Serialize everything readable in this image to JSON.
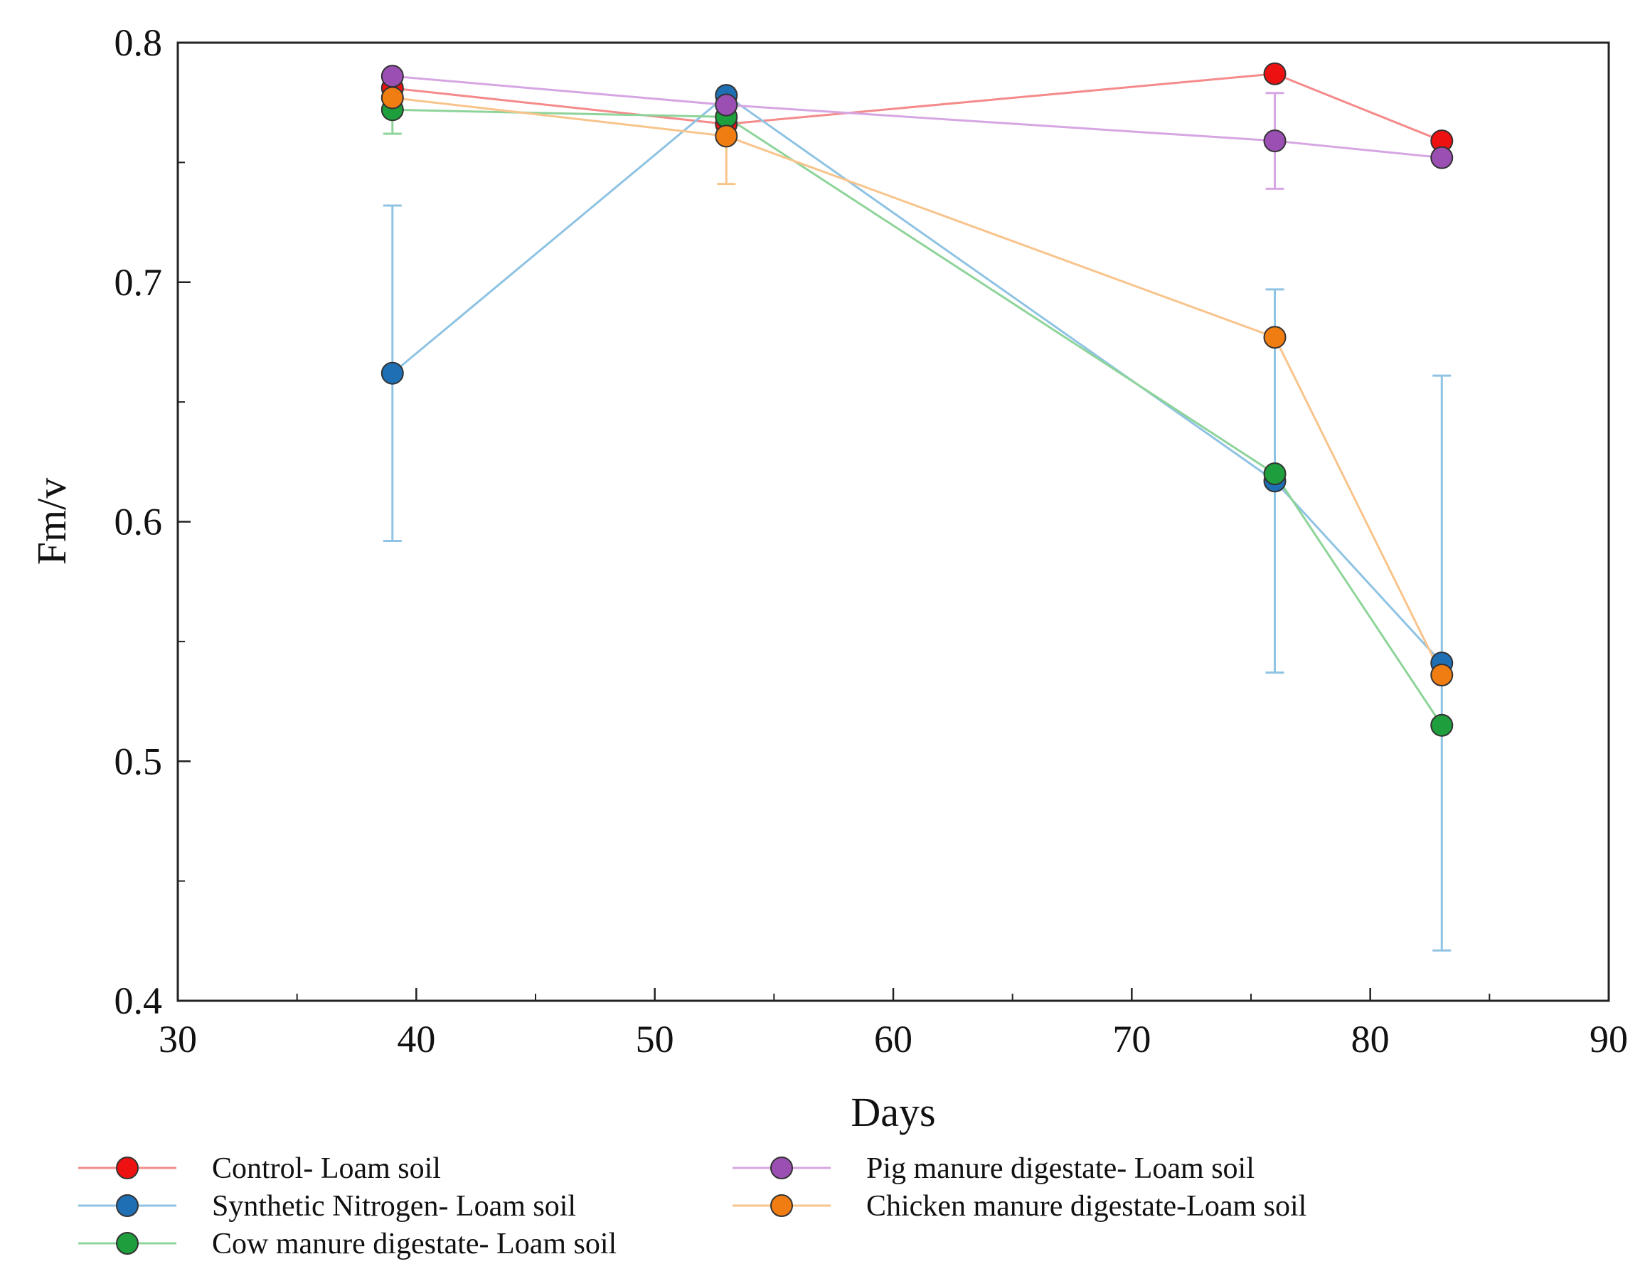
{
  "chart_data": {
    "type": "line",
    "title": "",
    "xlabel": "Days",
    "ylabel": "Fm/v",
    "xlim": [
      30,
      90
    ],
    "ylim": [
      0.4,
      0.8
    ],
    "x_ticks": [
      30,
      40,
      50,
      60,
      70,
      80,
      90
    ],
    "x_tick_labels": [
      "30",
      "40",
      "50",
      "60",
      "70",
      "80",
      "90"
    ],
    "y_ticks": [
      0.4,
      0.5,
      0.6,
      0.7,
      0.8
    ],
    "y_tick_labels": [
      "0.4",
      "0.5",
      "0.6",
      "0.7",
      "0.8"
    ],
    "x_minor_ticks": [
      35,
      45,
      55,
      65,
      75,
      85
    ],
    "y_minor_ticks": [
      0.45,
      0.55,
      0.65,
      0.75
    ],
    "grid": false,
    "legend_position": "bottom",
    "series": [
      {
        "name": "Control- Loam soil",
        "marker_color": "#ee1111",
        "line_color": "#f48a8a",
        "x": [
          39,
          53,
          76,
          83
        ],
        "y": [
          0.781,
          0.766,
          0.787,
          0.759
        ],
        "err": [
          0,
          0,
          0,
          0
        ]
      },
      {
        "name": "Synthetic Nitrogen- Loam soil",
        "marker_color": "#1f6fb5",
        "line_color": "#8fc3e3",
        "x": [
          39,
          53,
          76,
          83
        ],
        "y": [
          0.662,
          0.778,
          0.617,
          0.541
        ],
        "err": [
          0.07,
          0,
          0.08,
          0.12
        ]
      },
      {
        "name": "Cow manure digestate- Loam soil",
        "marker_color": "#1e9e3c",
        "line_color": "#8ed49a",
        "x": [
          39,
          53,
          76,
          83
        ],
        "y": [
          0.772,
          0.769,
          0.62,
          0.515
        ],
        "err": [
          0.01,
          0,
          0,
          0
        ]
      },
      {
        "name": "Pig manure digestate- Loam soil",
        "marker_color": "#9b4fb3",
        "line_color": "#d6a6e3",
        "x": [
          39,
          53,
          76,
          83
        ],
        "y": [
          0.786,
          0.774,
          0.759,
          0.752
        ],
        "err": [
          0,
          0,
          0.02,
          0
        ]
      },
      {
        "name": "Chicken manure digestate-Loam soil",
        "marker_color": "#f07d12",
        "line_color": "#f8c48c",
        "x": [
          39,
          53,
          76,
          83
        ],
        "y": [
          0.777,
          0.761,
          0.677,
          0.536
        ],
        "err": [
          0,
          0.02,
          0,
          0
        ]
      }
    ]
  }
}
